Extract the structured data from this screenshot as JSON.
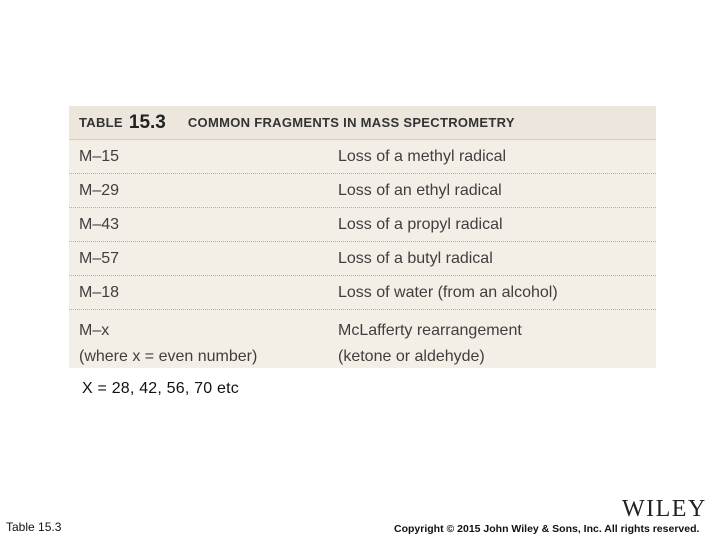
{
  "table": {
    "label": "TABLE",
    "number": "15.3",
    "title": "COMMON FRAGMENTS IN MASS SPECTROMETRY",
    "rows": [
      {
        "fragment": "M–15",
        "description": "Loss of a methyl radical"
      },
      {
        "fragment": "M–29",
        "description": "Loss of an ethyl radical"
      },
      {
        "fragment": "M–43",
        "description": "Loss of a propyl radical"
      },
      {
        "fragment": "M–57",
        "description": "Loss of a butyl radical"
      },
      {
        "fragment": "M–18",
        "description": "Loss of water (from an alcohol)"
      }
    ],
    "last_row": {
      "fragment_line1": "M–x",
      "fragment_line2": "(where x = even number)",
      "description_line1": "McLafferty rearrangement",
      "description_line2": "(ketone or aldehyde)"
    }
  },
  "note": "X = 28, 42, 56, 70 etc",
  "footer": {
    "left": "Table 15.3",
    "logo": "WILEY",
    "right": "Copyright © 2015 John Wiley & Sons, Inc. All rights reserved."
  }
}
